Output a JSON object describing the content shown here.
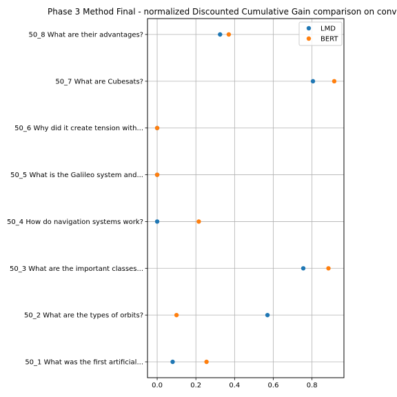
{
  "chart_data": {
    "type": "scatter",
    "title": "Phase 3 Method Final - normalized Discounted Cumulative Gain comparison on conv",
    "xlabel": "",
    "ylabel": "",
    "xlim": [
      -0.05,
      0.965
    ],
    "xticks": [
      "0.0",
      "0.2",
      "0.4",
      "0.6",
      "0.8"
    ],
    "xtick_values": [
      0.0,
      0.2,
      0.4,
      0.6,
      0.8
    ],
    "grid": true,
    "legend_position": "top-right",
    "categories": [
      "50_1 What was the first artificial...",
      "50_2 What are the types of orbits?",
      "50_3 What are the important classes...",
      "50_4 How do navigation systems work?",
      "50_5 What is the Galileo system and...",
      "50_6 Why did it create tension with...",
      "50_7 What are Cubesats?",
      "50_8 What are their advantages?"
    ],
    "series": [
      {
        "name": "LMD",
        "color": "#1f77b4",
        "values": [
          0.08,
          0.57,
          0.755,
          0.0,
          0.0,
          0.0,
          0.805,
          0.325
        ]
      },
      {
        "name": "BERT",
        "color": "#ff7f0e",
        "values": [
          0.255,
          0.1,
          0.885,
          0.215,
          0.0,
          0.0,
          0.915,
          0.37
        ]
      }
    ]
  }
}
